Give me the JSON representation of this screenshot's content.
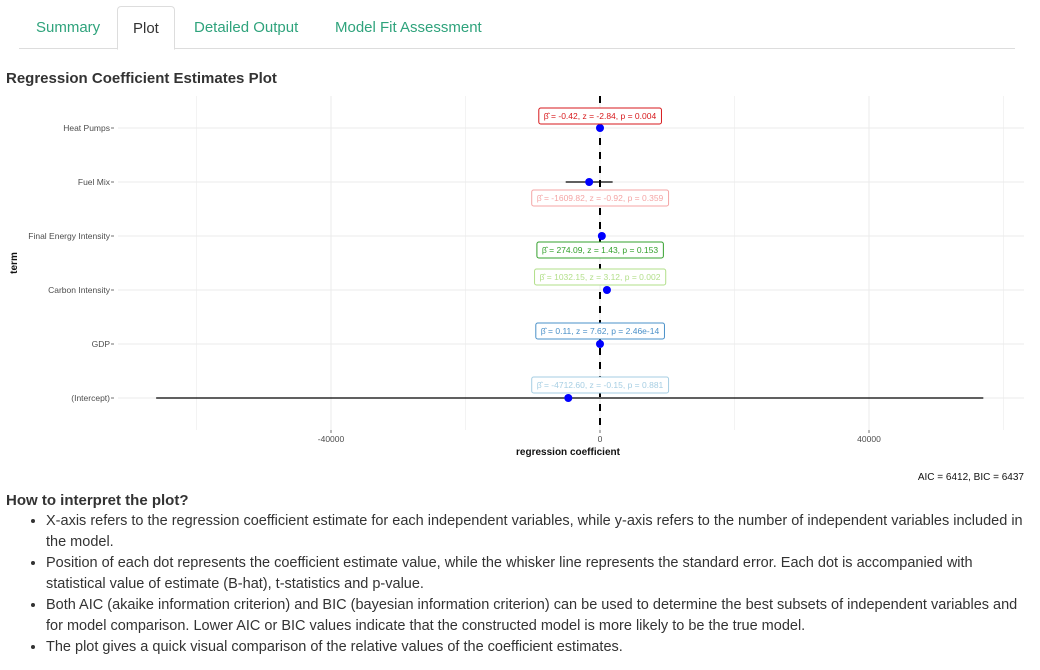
{
  "tabs": [
    {
      "label": "Summary",
      "active": false
    },
    {
      "label": "Plot",
      "active": true
    },
    {
      "label": "Detailed Output",
      "active": false
    },
    {
      "label": "Model Fit Assessment",
      "active": false
    }
  ],
  "section_title": "Regression Coefficient Estimates Plot",
  "aic_bic_text": "AIC = 6412, BIC = 6437",
  "help": {
    "title": "How to interpret the plot?",
    "items": [
      "X-axis refers to the regression coefficient estimate for each independent variables, while y-axis refers to the number of independent variables included in the model.",
      "Position of each dot represents the coefficient estimate value, while the whisker line represents the standard error. Each dot is accompanied with statistical value of estimate (B-hat), t-statistics and p-value.",
      "Both AIC (akaike information criterion) and BIC (bayesian information criterion) can be used to determine the best subsets of independent variables and for model comparison. Lower AIC or BIC values indicate that the constructed model is more likely to be the true model.",
      "The plot gives a quick visual comparison of the relative values of the coefficient estimates."
    ]
  },
  "colors": {
    "tab_link": "#2fa37c",
    "point": "#0000ff",
    "grid": "#ebebeb",
    "zero_line": "#000000"
  },
  "chart_data": {
    "type": "scatter",
    "title": "",
    "xlabel": "regression coefficient",
    "ylabel": "term",
    "xlim": [
      -60000,
      63000
    ],
    "x_ticks": [
      -40000,
      0,
      40000
    ],
    "x_tick_labels": [
      "-40000",
      "0",
      "40000"
    ],
    "grid": true,
    "terms": [
      "Heat Pumps",
      "Fuel Mix",
      "Final Energy Intensity",
      "Carbon Intensity",
      "GDP",
      "(Intercept)"
    ],
    "points": [
      {
        "term": "Heat Pumps",
        "estimate": -0.42,
        "se_low": -0.71,
        "se_high": -0.13,
        "label": "β̂ = -0.42,  z = -2.84,  p = 0.004",
        "label_color": "#d7191c"
      },
      {
        "term": "Fuel Mix",
        "estimate": -1609.82,
        "se_low": -5100,
        "se_high": 1880,
        "label": "β̂ = -1609.82,  z = -0.92,  p = 0.359",
        "label_color": "#f4a5a5"
      },
      {
        "term": "Final Energy Intensity",
        "estimate": 274.09,
        "se_low": 82,
        "se_high": 466,
        "label": "β̂ = 274.09,  z = 1.43,  p = 0.153",
        "label_color": "#33a02c"
      },
      {
        "term": "Carbon Intensity",
        "estimate": 1032.15,
        "se_low": 701,
        "se_high": 1363,
        "label": "β̂ = 1032.15,  z = 3.12,  p = 0.002",
        "label_color": "#b2df8a"
      },
      {
        "term": "GDP",
        "estimate": 0.11,
        "se_low": 0.096,
        "se_high": 0.124,
        "label": "β̂ = 0.11,  z = 7.62,  p = 2.46e-14",
        "label_color": "#4a90c8"
      },
      {
        "term": "(Intercept)",
        "estimate": -4712.6,
        "se_low": -66000,
        "se_high": 57000,
        "label": "β̂ = -4712.60,  z = -0.15,  p = 0.881",
        "label_color": "#a6cee3"
      }
    ]
  }
}
